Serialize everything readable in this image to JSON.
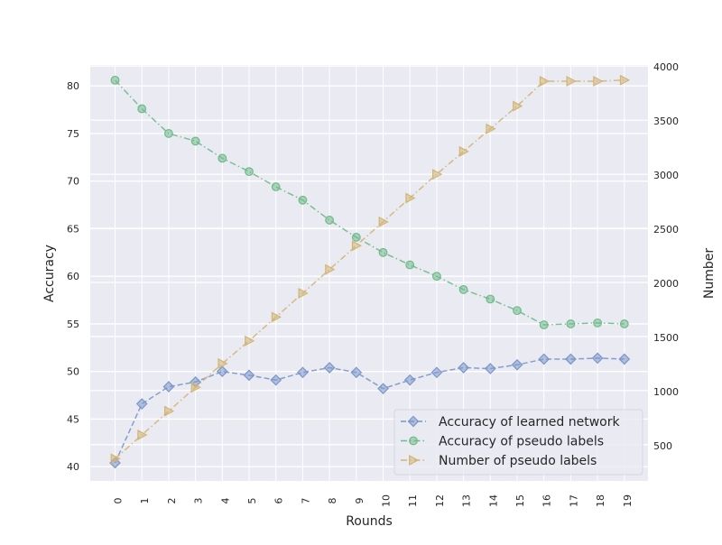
{
  "chart_data": {
    "type": "line",
    "xlabel": "Rounds",
    "ylabel": "Accuracy",
    "y2label": "Number",
    "x": [
      0,
      1,
      2,
      3,
      4,
      5,
      6,
      7,
      8,
      9,
      10,
      11,
      12,
      13,
      14,
      15,
      16,
      17,
      18,
      19
    ],
    "xticks": [
      "0",
      "1",
      "2",
      "3",
      "4",
      "5",
      "6",
      "7",
      "8",
      "9",
      "10",
      "11",
      "12",
      "13",
      "14",
      "15",
      "16",
      "17",
      "18",
      "19"
    ],
    "ylim": [
      38.5,
      82.2
    ],
    "yticks": [
      "40",
      "45",
      "50",
      "55",
      "60",
      "65",
      "70",
      "75",
      "80"
    ],
    "y2lim": [
      165,
      4010
    ],
    "y2ticks": [
      "500",
      "1000",
      "1500",
      "2000",
      "2500",
      "3000",
      "3500",
      "4000"
    ],
    "grid": true,
    "legend_position": "lower-right",
    "series": [
      {
        "name": "Accuracy of learned network",
        "axis": "left",
        "marker": "diamond",
        "linestyle": "dashed",
        "color": "#7b96c9",
        "values": [
          40.4,
          46.6,
          48.4,
          48.9,
          50.0,
          49.6,
          49.1,
          49.9,
          50.4,
          49.9,
          48.2,
          49.1,
          49.9,
          50.4,
          50.3,
          50.7,
          51.3,
          51.3,
          51.4,
          51.3
        ]
      },
      {
        "name": "Accuracy of pseudo labels",
        "axis": "left",
        "marker": "circle",
        "linestyle": "dashdot",
        "color": "#6fb98a",
        "values": [
          80.6,
          77.6,
          75.0,
          74.2,
          72.4,
          71.0,
          69.4,
          68.0,
          65.9,
          64.1,
          62.5,
          61.2,
          60.0,
          58.6,
          57.6,
          56.4,
          54.9,
          55.0,
          55.1,
          55.0
        ]
      },
      {
        "name": "Number of pseudo labels",
        "axis": "right",
        "marker": "triangle-right",
        "linestyle": "dashdot",
        "color": "#d1b576",
        "values": [
          370,
          590,
          810,
          1030,
          1250,
          1460,
          1680,
          1900,
          2120,
          2340,
          2560,
          2780,
          3000,
          3210,
          3420,
          3630,
          3860,
          3860,
          3860,
          3870
        ]
      }
    ]
  }
}
